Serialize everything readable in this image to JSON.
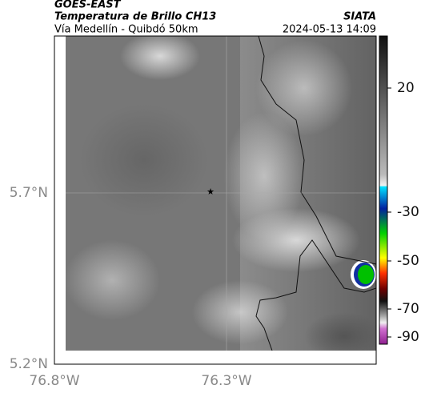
{
  "header": {
    "satellite": "GOES-EAST",
    "product": "Temperatura de Brillo CH13",
    "route": "Vía Medellín - Quibdó 50km",
    "source": "SIATA",
    "timestamp": "2024-05-13 14:09"
  },
  "map": {
    "lat_labels": [
      "5.7°N",
      "5.2°N"
    ],
    "lon_labels": [
      "76.8°W",
      "76.3°W"
    ],
    "marker": "★"
  },
  "colorbar": {
    "ticks": [
      20,
      -30,
      -50,
      -70,
      -90
    ]
  }
}
